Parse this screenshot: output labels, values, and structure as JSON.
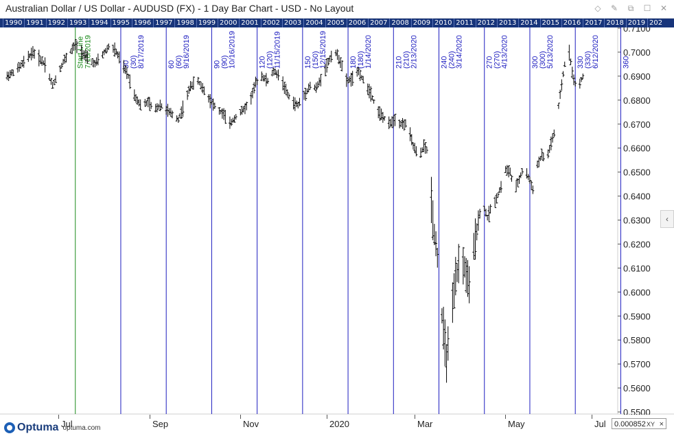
{
  "window": {
    "title": "Australian Dollar / US Dollar - AUDUSD (FX) - 1 Day Bar Chart - USD - No Layout",
    "icons": [
      "diamond-icon",
      "pin-icon",
      "restore-icon",
      "maximize-icon",
      "close-icon"
    ]
  },
  "year_band": [
    "1990",
    "1991",
    "1992",
    "1993",
    "1994",
    "1995",
    "1996",
    "1997",
    "1998",
    "1999",
    "2000",
    "2001",
    "2002",
    "2003",
    "2004",
    "2005",
    "2006",
    "2007",
    "2008",
    "2009",
    "2010",
    "2011",
    "2012",
    "2013",
    "2014",
    "2015",
    "2016",
    "2017",
    "2018",
    "2019",
    "202"
  ],
  "chart_data": {
    "type": "bar",
    "title": "Australian Dollar / US Dollar - AUDUSD (FX) - 1 Day Bar Chart - USD - No Layout",
    "y_ticks": [
      "0.7100",
      "0.7000",
      "0.6900",
      "0.6800",
      "0.6700",
      "0.6600",
      "0.6500",
      "0.6400",
      "0.6300",
      "0.6200",
      "0.6100",
      "0.6000",
      "0.5900",
      "0.5800",
      "0.5700",
      "0.5600",
      "0.5500"
    ],
    "ylim": [
      0.55,
      0.71
    ],
    "x_month_labels": [
      "Jul",
      "Sep",
      "Nov",
      "2020",
      "Mar",
      "May",
      "Jul"
    ],
    "price_path": [
      [
        "2019-06-01",
        0.689
      ],
      [
        "2019-06-10",
        0.693
      ],
      [
        "2019-06-20",
        0.7
      ],
      [
        "2019-06-28",
        0.695
      ],
      [
        "2019-07-03",
        0.686
      ],
      [
        "2019-07-10",
        0.696
      ],
      [
        "2019-07-18",
        0.703
      ],
      [
        "2019-07-25",
        0.698
      ],
      [
        "2019-07-31",
        0.695
      ],
      [
        "2019-08-05",
        0.699
      ],
      [
        "2019-08-10",
        0.703
      ],
      [
        "2019-08-14",
        0.7
      ],
      [
        "2019-08-18",
        0.695
      ],
      [
        "2019-08-22",
        0.69
      ],
      [
        "2019-08-26",
        0.682
      ],
      [
        "2019-08-30",
        0.678
      ],
      [
        "2019-09-04",
        0.679
      ],
      [
        "2019-09-08",
        0.676
      ],
      [
        "2019-09-12",
        0.678
      ],
      [
        "2019-09-16",
        0.676
      ],
      [
        "2019-09-20",
        0.674
      ],
      [
        "2019-09-24",
        0.672
      ],
      [
        "2019-09-28",
        0.678
      ],
      [
        "2019-10-02",
        0.686
      ],
      [
        "2019-10-07",
        0.688
      ],
      [
        "2019-10-12",
        0.683
      ],
      [
        "2019-10-16",
        0.679
      ],
      [
        "2019-10-20",
        0.676
      ],
      [
        "2019-10-24",
        0.674
      ],
      [
        "2019-10-28",
        0.67
      ],
      [
        "2019-11-02",
        0.674
      ],
      [
        "2019-11-06",
        0.676
      ],
      [
        "2019-11-10",
        0.679
      ],
      [
        "2019-11-14",
        0.687
      ],
      [
        "2019-11-18",
        0.69
      ],
      [
        "2019-11-22",
        0.688
      ],
      [
        "2019-11-26",
        0.692
      ],
      [
        "2019-11-30",
        0.69
      ],
      [
        "2019-12-04",
        0.684
      ],
      [
        "2019-12-08",
        0.679
      ],
      [
        "2019-12-12",
        0.678
      ],
      [
        "2019-12-16",
        0.682
      ],
      [
        "2019-12-20",
        0.686
      ],
      [
        "2019-12-24",
        0.685
      ],
      [
        "2019-12-28",
        0.69
      ],
      [
        "2020-01-01",
        0.696
      ],
      [
        "2020-01-05",
        0.701
      ],
      [
        "2020-01-09",
        0.696
      ],
      [
        "2020-01-13",
        0.688
      ],
      [
        "2020-01-17",
        0.689
      ],
      [
        "2020-01-21",
        0.692
      ],
      [
        "2020-01-25",
        0.687
      ],
      [
        "2020-01-29",
        0.683
      ],
      [
        "2020-02-02",
        0.676
      ],
      [
        "2020-02-06",
        0.673
      ],
      [
        "2020-02-10",
        0.67
      ],
      [
        "2020-02-14",
        0.672
      ],
      [
        "2020-02-18",
        0.67
      ],
      [
        "2020-02-22",
        0.67
      ],
      [
        "2020-02-26",
        0.661
      ],
      [
        "2020-03-01",
        0.656
      ],
      [
        "2020-03-04",
        0.661
      ],
      [
        "2020-03-07",
        0.658
      ],
      [
        "2020-03-10",
        0.63
      ],
      [
        "2020-03-13",
        0.615
      ],
      [
        "2020-03-16",
        0.59
      ],
      [
        "2020-03-19",
        0.572
      ],
      [
        "2020-03-22",
        0.588
      ],
      [
        "2020-03-25",
        0.605
      ],
      [
        "2020-03-28",
        0.615
      ],
      [
        "2020-03-31",
        0.61
      ],
      [
        "2020-04-03",
        0.602
      ],
      [
        "2020-04-06",
        0.618
      ],
      [
        "2020-04-09",
        0.63
      ],
      [
        "2020-04-12",
        0.637
      ],
      [
        "2020-04-15",
        0.631
      ],
      [
        "2020-04-18",
        0.636
      ],
      [
        "2020-04-21",
        0.639
      ],
      [
        "2020-04-24",
        0.644
      ],
      [
        "2020-04-27",
        0.651
      ],
      [
        "2020-04-30",
        0.65
      ],
      [
        "2020-05-03",
        0.642
      ],
      [
        "2020-05-06",
        0.647
      ],
      [
        "2020-05-09",
        0.652
      ],
      [
        "2020-05-12",
        0.648
      ],
      [
        "2020-05-15",
        0.643
      ],
      [
        "2020-05-18",
        0.653
      ],
      [
        "2020-05-21",
        0.657
      ],
      [
        "2020-05-24",
        0.655
      ],
      [
        "2020-05-27",
        0.662
      ],
      [
        "2020-05-30",
        0.668
      ],
      [
        "2020-06-02",
        0.682
      ],
      [
        "2020-06-05",
        0.695
      ],
      [
        "2020-06-08",
        0.7
      ],
      [
        "2020-06-11",
        0.688
      ],
      [
        "2020-06-14",
        0.685
      ],
      [
        "2020-06-17",
        0.69
      ]
    ],
    "cycle_lines": [
      {
        "day": "Start Line",
        "paren": "",
        "date": "7/18/2019",
        "color": "#1a8a1a"
      },
      {
        "day": "30",
        "paren": "(30)",
        "date": "8/17/2019",
        "color": "#1b1bbf"
      },
      {
        "day": "60",
        "paren": "(60)",
        "date": "9/16/2019",
        "color": "#1b1bbf"
      },
      {
        "day": "90",
        "paren": "(90)",
        "date": "10/16/2019",
        "color": "#1b1bbf"
      },
      {
        "day": "120",
        "paren": "(120)",
        "date": "11/15/2019",
        "color": "#1b1bbf"
      },
      {
        "day": "150",
        "paren": "(150)",
        "date": "12/15/2019",
        "color": "#1b1bbf"
      },
      {
        "day": "180",
        "paren": "(180)",
        "date": "1/14/2020",
        "color": "#1b1bbf"
      },
      {
        "day": "210",
        "paren": "(210)",
        "date": "2/13/2020",
        "color": "#1b1bbf"
      },
      {
        "day": "240",
        "paren": "(240)",
        "date": "3/14/2020",
        "color": "#1b1bbf"
      },
      {
        "day": "270",
        "paren": "(270)",
        "date": "4/13/2020",
        "color": "#1b1bbf"
      },
      {
        "day": "300",
        "paren": "(300)",
        "date": "5/13/2020",
        "color": "#1b1bbf"
      },
      {
        "day": "330",
        "paren": "(330)",
        "date": "6/12/2020",
        "color": "#1b1bbf"
      },
      {
        "day": "360",
        "paren": "",
        "date": "",
        "color": "#1b1bbf"
      }
    ]
  },
  "footer": {
    "brand": "Optuma",
    "url": "optuma.com",
    "value": "0.000852",
    "xy_label": "XY",
    "close": "×"
  },
  "side_handle": "‹"
}
